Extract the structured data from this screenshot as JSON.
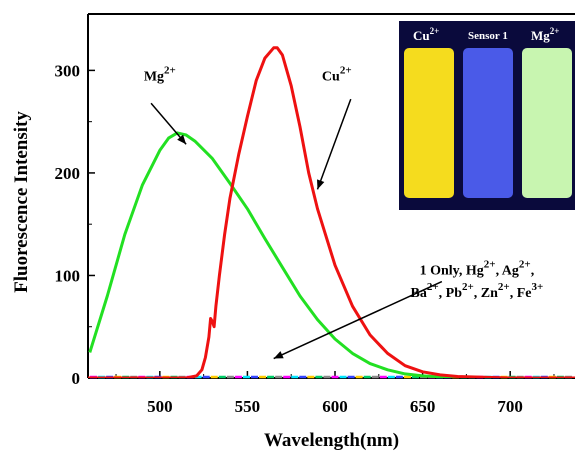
{
  "chart_data": {
    "type": "line",
    "xlabel": "Wavelength(nm)",
    "ylabel": "Fluorescence Intensity",
    "xlim": [
      459,
      737
    ],
    "ylim": [
      0,
      355
    ],
    "xticks": [
      500,
      550,
      600,
      650,
      700
    ],
    "yticks": [
      0,
      100,
      200,
      300
    ],
    "series": [
      {
        "name": "Mg2+",
        "color": "#22e022",
        "x": [
          460,
          470,
          480,
          490,
          500,
          505,
          510,
          515,
          520,
          530,
          540,
          550,
          560,
          570,
          580,
          590,
          600,
          610,
          620,
          630,
          640,
          650,
          660,
          680,
          700,
          737
        ],
        "y": [
          25,
          80,
          140,
          188,
          222,
          234,
          239,
          237,
          231,
          214,
          190,
          165,
          136,
          108,
          80,
          57,
          38,
          24,
          14,
          8,
          4,
          2,
          1,
          0,
          0,
          0
        ]
      },
      {
        "name": "Cu2+",
        "color": "#ee1111",
        "x": [
          459,
          515,
          521,
          524,
          526,
          528,
          529,
          530,
          531,
          532,
          534,
          537,
          540,
          545,
          550,
          555,
          560,
          565,
          567,
          570,
          575,
          580,
          585,
          590,
          600,
          610,
          620,
          630,
          640,
          650,
          660,
          670,
          680,
          690,
          700,
          720,
          737
        ],
        "y": [
          0,
          0,
          2,
          8,
          20,
          40,
          58,
          55,
          50,
          70,
          100,
          140,
          175,
          218,
          255,
          290,
          312,
          322,
          322,
          315,
          285,
          245,
          200,
          165,
          110,
          70,
          42,
          24,
          12,
          6,
          3,
          1.5,
          1,
          0.5,
          0,
          0,
          0
        ]
      }
    ],
    "annotations": {
      "mg": {
        "base": "Mg",
        "sup": "2+",
        "x": 500,
        "y": 290
      },
      "cu": {
        "base": "Cu",
        "sup": "2+",
        "x": 601,
        "y": 290
      },
      "others_line1": {
        "base1": "1 Only, Hg",
        "sup1": "2+",
        "base2": ", Ag",
        "sup2": "2+",
        "end": ",",
        "x": 681,
        "y": 101
      },
      "others_line2": {
        "base1": "Ba",
        "sup1": "2+",
        "base2": ", Pb",
        "sup2": "2+",
        "base3": ", Zn",
        "sup3": "2+",
        "base4": ", Fe",
        "sup4": "3+",
        "x": 681,
        "y": 79
      }
    },
    "inset_labels": {
      "vial1": {
        "base": "Cu",
        "sup": "2+"
      },
      "vial2": "Sensor 1",
      "vial3": {
        "base": "Mg",
        "sup": "2+"
      }
    },
    "inset_colors": [
      "#f5dc1e",
      "#4a5ae8",
      "#c8f5b0"
    ]
  }
}
